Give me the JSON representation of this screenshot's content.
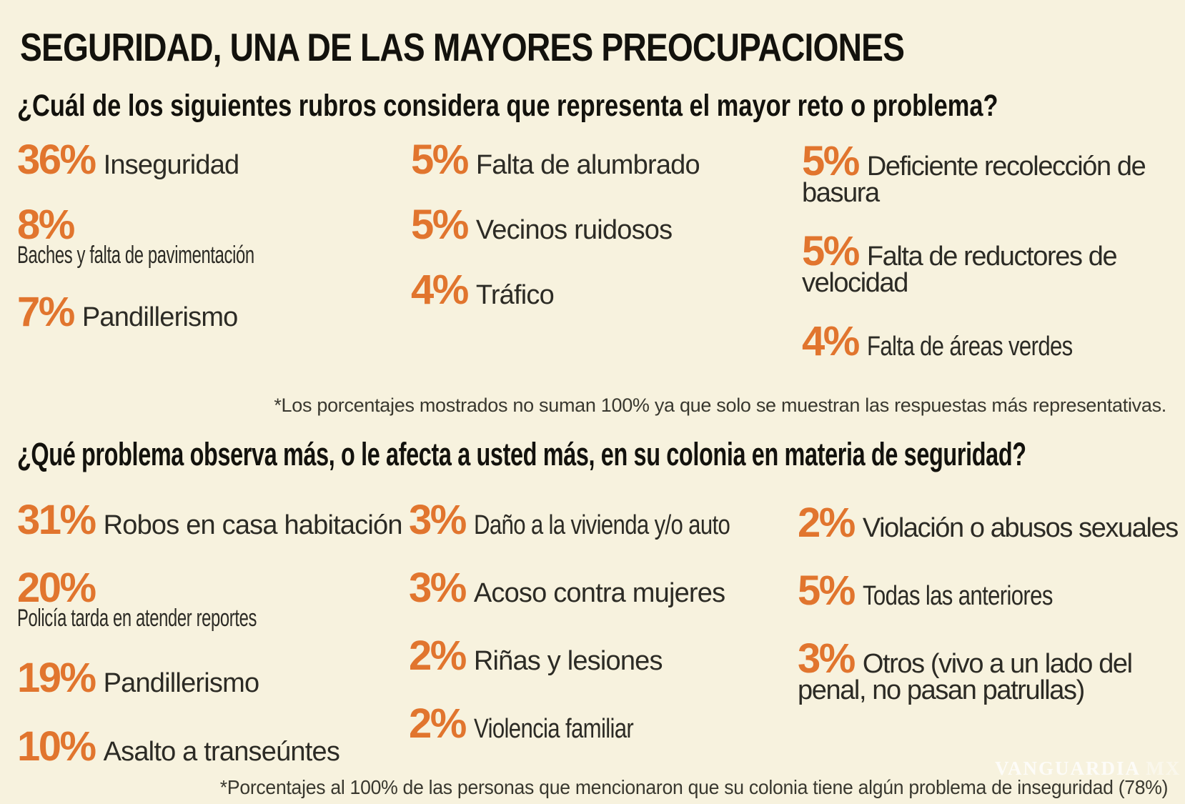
{
  "page": {
    "title": "SEGURIDAD, UNA DE LAS MAYORES PREOCUPACIONES",
    "background_color": "#f7f2de",
    "accent_color": "#e1752e",
    "watermark": "VANGUARDIA",
    "watermark_suffix": "MX"
  },
  "sections": [
    {
      "question": "¿Cuál de los siguientes rubros considera que representa el mayor reto o problema?",
      "columns": [
        {
          "items": [
            {
              "pct": "36%",
              "label": "Inseguridad"
            },
            {
              "pct": "8%",
              "label": "Baches y falta de pavimentación"
            },
            {
              "pct": "7%",
              "label": "Pandillerismo"
            }
          ]
        },
        {
          "items": [
            {
              "pct": "5%",
              "label": "Falta de alumbrado"
            },
            {
              "pct": "5%",
              "label": "Vecinos ruidosos"
            },
            {
              "pct": "4%",
              "label": "Tráfico"
            }
          ]
        },
        {
          "items": [
            {
              "pct": "5%",
              "label": "Deficiente recolección de basura"
            },
            {
              "pct": "5%",
              "label": "Falta de reductores de velocidad"
            },
            {
              "pct": "4%",
              "label": "Falta de áreas verdes"
            }
          ]
        }
      ],
      "note": "*Los porcentajes mostrados no suman 100% ya que solo se muestran las respuestas más representativas."
    },
    {
      "question": "¿Qué problema observa más, o le afecta a usted más, en su colonia en materia de seguridad?",
      "columns": [
        {
          "items": [
            {
              "pct": "31%",
              "label": "Robos en casa habitación"
            },
            {
              "pct": "20%",
              "label": "Policía tarda en atender reportes"
            },
            {
              "pct": "19%",
              "label": "Pandillerismo"
            },
            {
              "pct": "10%",
              "label": "Asalto a transeúntes"
            }
          ]
        },
        {
          "items": [
            {
              "pct": "3%",
              "label": "Daño a la vivienda y/o auto"
            },
            {
              "pct": "3%",
              "label": "Acoso contra mujeres"
            },
            {
              "pct": "2%",
              "label": "Riñas y lesiones"
            },
            {
              "pct": "2%",
              "label": "Violencia familiar"
            }
          ]
        },
        {
          "items": [
            {
              "pct": "2%",
              "label": "Violación o abusos sexuales"
            },
            {
              "pct": "5%",
              "label": "Todas las anteriores"
            },
            {
              "pct": "3%",
              "label": "Otros (vivo a un lado del penal, no pasan patrullas)"
            }
          ]
        }
      ],
      "note": "*Porcentajes al 100% de las personas que mencionaron que su colonia tiene algún problema de inseguridad (78%)"
    }
  ],
  "chart_data": [
    {
      "type": "bar",
      "title": "¿Cuál de los siguientes rubros considera que representa el mayor reto o problema?",
      "categories": [
        "Inseguridad",
        "Baches y falta de pavimentación",
        "Pandillerismo",
        "Falta de alumbrado",
        "Vecinos ruidosos",
        "Tráfico",
        "Deficiente recolección de basura",
        "Falta de reductores de velocidad",
        "Falta de áreas verdes"
      ],
      "values": [
        36,
        8,
        7,
        5,
        5,
        4,
        5,
        5,
        4
      ],
      "unit": "%",
      "note": "Los porcentajes mostrados no suman 100% ya que solo se muestran las respuestas más representativas."
    },
    {
      "type": "bar",
      "title": "¿Qué problema observa más, o le afecta a usted más, en su colonia en materia de seguridad?",
      "categories": [
        "Robos en casa habitación",
        "Policía tarda en atender reportes",
        "Pandillerismo",
        "Asalto a transeúntes",
        "Daño a la vivienda y/o auto",
        "Acoso contra mujeres",
        "Riñas y lesiones",
        "Violencia familiar",
        "Violación o abusos sexuales",
        "Todas las anteriores",
        "Otros (vivo a un lado del penal, no pasan patrullas)"
      ],
      "values": [
        31,
        20,
        19,
        10,
        3,
        3,
        2,
        2,
        2,
        5,
        3
      ],
      "unit": "%",
      "note": "Porcentajes al 100% de las personas que mencionaron que su colonia tiene algún problema de inseguridad (78%)"
    }
  ]
}
